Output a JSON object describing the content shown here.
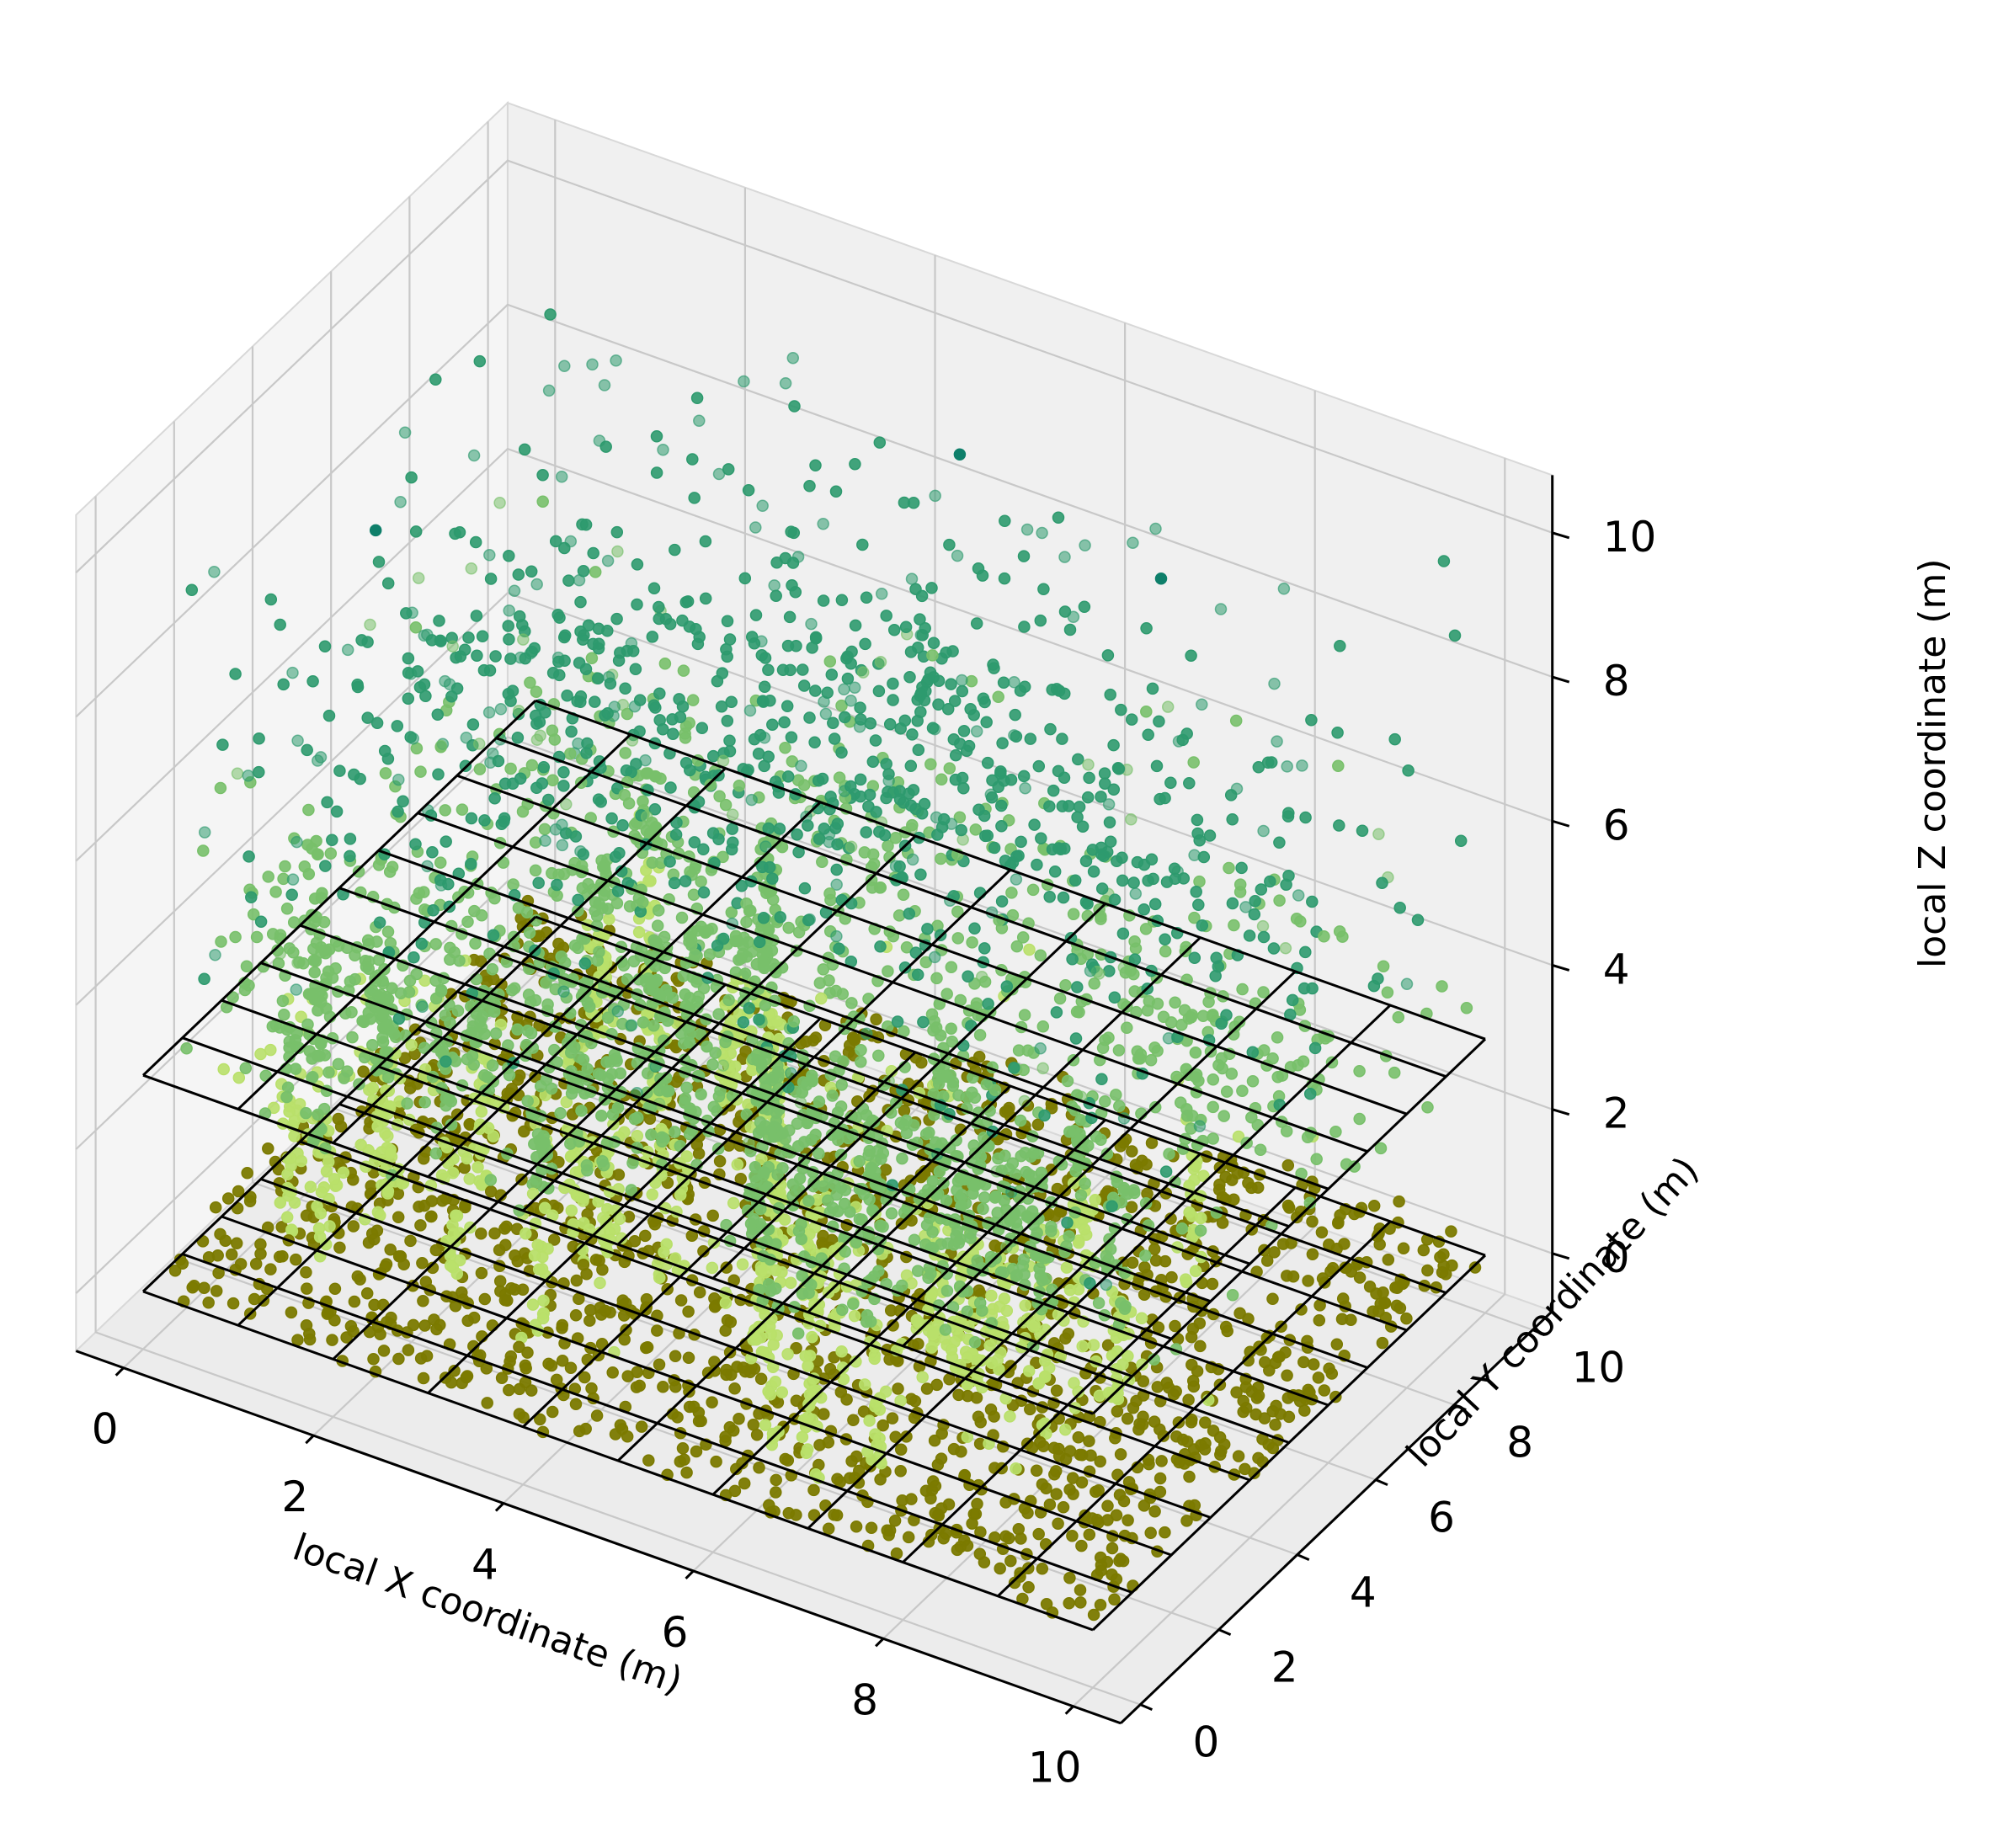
{
  "chart_data": {
    "type": "scatter3d",
    "title": "",
    "xlabel": "local X coordinate (m)",
    "ylabel": "local Y coordinate (m)",
    "zlabel": "local Z coordinate (m)",
    "xlim": [
      0,
      10
    ],
    "ylim": [
      0,
      10
    ],
    "zlim": [
      0,
      10
    ],
    "xticks": [
      "0",
      "2",
      "4",
      "6",
      "8",
      "10"
    ],
    "yticks": [
      "0",
      "2",
      "4",
      "6",
      "8",
      "10"
    ],
    "zticks": [
      "0",
      "2",
      "4",
      "6",
      "8",
      "10"
    ],
    "grid": true,
    "legend": "none",
    "planes": [
      {
        "z": 0,
        "cells_x": 10,
        "cells_y": 10
      },
      {
        "z": 3,
        "cells_x": 10,
        "cells_y": 10
      }
    ],
    "series": [
      {
        "color": "#7b7a00",
        "z_range": [
          -0.2,
          0.6
        ],
        "description_count": 1800
      },
      {
        "color": "#b9e06a",
        "z_range": [
          0.6,
          4.0
        ],
        "description_count": 1400
      },
      {
        "color": "#78c06a",
        "z_range": [
          1.5,
          6.5
        ],
        "description_count": 1800
      },
      {
        "color": "#2e9a6e",
        "z_range": [
          4.5,
          10.0
        ],
        "description_count": 900
      }
    ],
    "colors": {
      "ground": "#7b7a00",
      "low": "#b9e06a",
      "mid": "#78c06a",
      "high": "#2e9a6e",
      "top": "#0e7f6a"
    }
  }
}
